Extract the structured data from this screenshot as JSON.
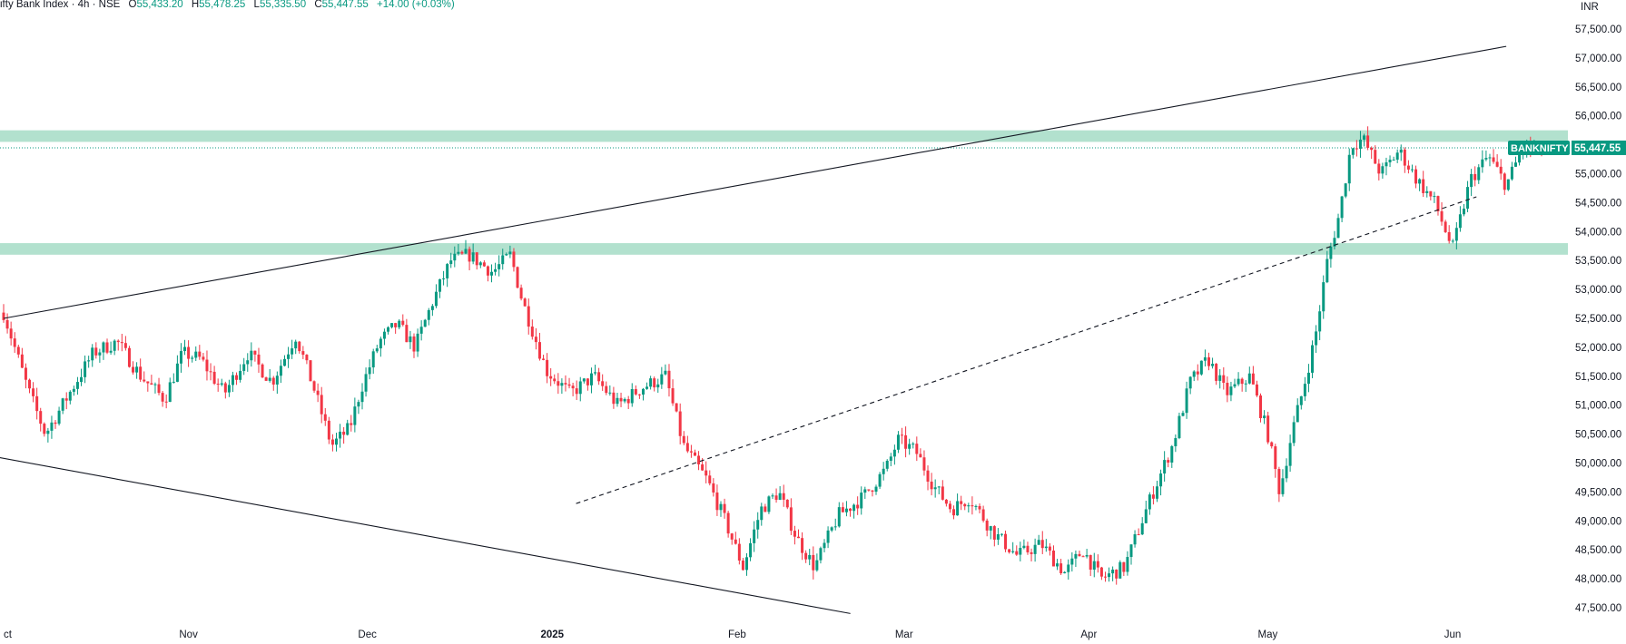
{
  "header": {
    "title": "ifty Bank Index · 4h · NSE",
    "open_label": "O",
    "open": "55,433.20",
    "high_label": "H",
    "high": "55,478.25",
    "low_label": "L",
    "low": "55,335.50",
    "close_label": "C",
    "close": "55,447.55",
    "change": "+14.00 (+0.03%)"
  },
  "currency": "INR",
  "price_tag": {
    "symbol": "BANKNIFTY",
    "value": "55,447.55"
  },
  "colors": {
    "up": "#089981",
    "down": "#f23645",
    "zone": "#a5dcc6",
    "line": "#131722",
    "price_line": "#089981"
  },
  "chart_data": {
    "type": "candlestick",
    "y_axis": {
      "min": 47500,
      "max": 57500,
      "step": 500,
      "side": "right"
    },
    "y_ticks": [
      "57,500.00",
      "57,000.00",
      "56,500.00",
      "56,000.00",
      "55,500.00",
      "55,000.00",
      "54,500.00",
      "54,000.00",
      "53,500.00",
      "53,000.00",
      "52,500.00",
      "52,000.00",
      "51,500.00",
      "51,000.00",
      "50,500.00",
      "50,000.00",
      "49,500.00",
      "49,000.00",
      "48,500.00",
      "48,000.00",
      "47,500.00"
    ],
    "x_ticks": [
      {
        "label": "ct",
        "date": "2024-10-01"
      },
      {
        "label": "Nov",
        "date": "2024-11-01"
      },
      {
        "label": "Dec",
        "date": "2024-12-01"
      },
      {
        "label": "2025",
        "date": "2025-01-01",
        "bold": true
      },
      {
        "label": "Feb",
        "date": "2025-02-01"
      },
      {
        "label": "Mar",
        "date": "2025-03-01"
      },
      {
        "label": "Apr",
        "date": "2025-04-01"
      },
      {
        "label": "May",
        "date": "2025-05-01"
      },
      {
        "label": "Jun",
        "date": "2025-06-01"
      }
    ],
    "last_price": 55447.55,
    "zones": [
      {
        "from": 55550,
        "to": 55750
      },
      {
        "from": 53600,
        "to": 53800
      }
    ],
    "trendlines": [
      {
        "style": "solid",
        "from": {
          "date": "2024-10-01",
          "price": 52500
        },
        "to": {
          "date": "2025-06-10",
          "price": 57200
        }
      },
      {
        "style": "solid",
        "from": {
          "date": "2024-09-30",
          "price": 50100
        },
        "to": {
          "date": "2025-02-20",
          "price": 47400
        }
      },
      {
        "style": "dashed",
        "from": {
          "date": "2025-01-05",
          "price": 49300
        },
        "to": {
          "date": "2025-06-05",
          "price": 54600
        }
      }
    ],
    "path": [
      {
        "date": "2024-10-01",
        "price": 52600
      },
      {
        "date": "2024-10-05",
        "price": 51300
      },
      {
        "date": "2024-10-08",
        "price": 50500
      },
      {
        "date": "2024-10-12",
        "price": 51200
      },
      {
        "date": "2024-10-16",
        "price": 51900
      },
      {
        "date": "2024-10-20",
        "price": 52100
      },
      {
        "date": "2024-10-24",
        "price": 51500
      },
      {
        "date": "2024-10-28",
        "price": 51100
      },
      {
        "date": "2024-10-31",
        "price": 51900
      },
      {
        "date": "2024-11-03",
        "price": 51800
      },
      {
        "date": "2024-11-07",
        "price": 51200
      },
      {
        "date": "2024-11-11",
        "price": 51900
      },
      {
        "date": "2024-11-15",
        "price": 51400
      },
      {
        "date": "2024-11-19",
        "price": 52200
      },
      {
        "date": "2024-11-22",
        "price": 51300
      },
      {
        "date": "2024-11-25",
        "price": 50300
      },
      {
        "date": "2024-11-28",
        "price": 50600
      },
      {
        "date": "2024-11-30",
        "price": 51300
      },
      {
        "date": "2024-12-03",
        "price": 52100
      },
      {
        "date": "2024-12-06",
        "price": 52400
      },
      {
        "date": "2024-12-09",
        "price": 52000
      },
      {
        "date": "2024-12-12",
        "price": 52800
      },
      {
        "date": "2024-12-15",
        "price": 53500
      },
      {
        "date": "2024-12-18",
        "price": 53600
      },
      {
        "date": "2024-12-22",
        "price": 53300
      },
      {
        "date": "2024-12-25",
        "price": 53600
      },
      {
        "date": "2024-12-27",
        "price": 52800
      },
      {
        "date": "2024-12-31",
        "price": 51600
      },
      {
        "date": "2025-01-04",
        "price": 51200
      },
      {
        "date": "2025-01-08",
        "price": 51500
      },
      {
        "date": "2025-01-12",
        "price": 51000
      },
      {
        "date": "2025-01-16",
        "price": 51300
      },
      {
        "date": "2025-01-20",
        "price": 51500
      },
      {
        "date": "2025-01-23",
        "price": 50300
      },
      {
        "date": "2025-01-27",
        "price": 49700
      },
      {
        "date": "2025-01-30",
        "price": 49000
      },
      {
        "date": "2025-02-02",
        "price": 48200
      },
      {
        "date": "2025-02-05",
        "price": 49200
      },
      {
        "date": "2025-02-08",
        "price": 49500
      },
      {
        "date": "2025-02-11",
        "price": 48700
      },
      {
        "date": "2025-02-14",
        "price": 48200
      },
      {
        "date": "2025-02-18",
        "price": 49100
      },
      {
        "date": "2025-02-22",
        "price": 49400
      },
      {
        "date": "2025-02-26",
        "price": 49900
      },
      {
        "date": "2025-02-28",
        "price": 50400
      },
      {
        "date": "2025-03-03",
        "price": 50200
      },
      {
        "date": "2025-03-06",
        "price": 49600
      },
      {
        "date": "2025-03-09",
        "price": 49200
      },
      {
        "date": "2025-03-12",
        "price": 49400
      },
      {
        "date": "2025-03-16",
        "price": 48800
      },
      {
        "date": "2025-03-20",
        "price": 48400
      },
      {
        "date": "2025-03-24",
        "price": 48600
      },
      {
        "date": "2025-03-28",
        "price": 48100
      },
      {
        "date": "2025-03-31",
        "price": 48500
      },
      {
        "date": "2025-04-03",
        "price": 48000
      },
      {
        "date": "2025-04-07",
        "price": 48200
      },
      {
        "date": "2025-04-11",
        "price": 49300
      },
      {
        "date": "2025-04-15",
        "price": 50300
      },
      {
        "date": "2025-04-18",
        "price": 51400
      },
      {
        "date": "2025-04-21",
        "price": 51800
      },
      {
        "date": "2025-04-24",
        "price": 51200
      },
      {
        "date": "2025-04-28",
        "price": 51500
      },
      {
        "date": "2025-05-01",
        "price": 50500
      },
      {
        "date": "2025-05-03",
        "price": 49500
      },
      {
        "date": "2025-05-05",
        "price": 50500
      },
      {
        "date": "2025-05-07",
        "price": 51300
      },
      {
        "date": "2025-05-09",
        "price": 52200
      },
      {
        "date": "2025-05-11",
        "price": 53500
      },
      {
        "date": "2025-05-13",
        "price": 54300
      },
      {
        "date": "2025-05-15",
        "price": 55500
      },
      {
        "date": "2025-05-17",
        "price": 55600
      },
      {
        "date": "2025-05-20",
        "price": 55000
      },
      {
        "date": "2025-05-23",
        "price": 55400
      },
      {
        "date": "2025-05-26",
        "price": 54900
      },
      {
        "date": "2025-05-29",
        "price": 54500
      },
      {
        "date": "2025-06-01",
        "price": 53700
      },
      {
        "date": "2025-06-04",
        "price": 54900
      },
      {
        "date": "2025-06-07",
        "price": 55300
      },
      {
        "date": "2025-06-10",
        "price": 54800
      },
      {
        "date": "2025-06-13",
        "price": 55500
      },
      {
        "date": "2025-06-15",
        "price": 55400
      },
      {
        "date": "2025-06-17",
        "price": 55450
      }
    ]
  }
}
